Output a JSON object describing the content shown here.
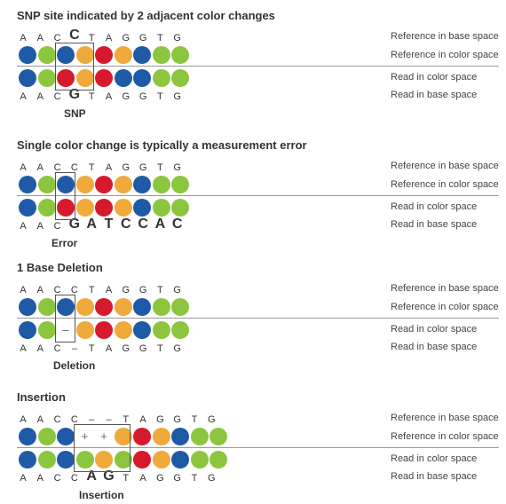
{
  "colors": {
    "blue": "#1f5aa6",
    "green": "#8cc63f",
    "orange": "#f0a93b",
    "red": "#d7192d",
    "line": "#999999"
  },
  "labels": {
    "ref_base": "Reference in base space",
    "ref_color": "Reference in color space",
    "read_color": "Read in color space",
    "read_base": "Read in base space"
  },
  "sections": [
    {
      "title": "SNP site indicated by 2 adjacent color changes",
      "ref_bases": [
        "A",
        "A",
        "C",
        "C",
        "T",
        "A",
        "G",
        "G",
        "T",
        "G"
      ],
      "ref_big": [
        3
      ],
      "ref_colors": [
        "blue",
        "green",
        "blue",
        "orange",
        "red",
        "orange",
        "blue",
        "green",
        "green"
      ],
      "read_colors": [
        "blue",
        "green",
        "red",
        "orange",
        "red",
        "blue",
        "blue",
        "green",
        "green"
      ],
      "read_bases": [
        "A",
        "A",
        "C",
        "G",
        "T",
        "A",
        "G",
        "G",
        "T",
        "G"
      ],
      "read_big": [
        3
      ],
      "annotation": "SNP"
    },
    {
      "title": "Single color change is typically a measurement error",
      "ref_bases": [
        "A",
        "A",
        "C",
        "C",
        "T",
        "A",
        "G",
        "G",
        "T",
        "G"
      ],
      "ref_big": [],
      "ref_colors": [
        "blue",
        "green",
        "blue",
        "orange",
        "red",
        "orange",
        "blue",
        "green",
        "green"
      ],
      "read_colors": [
        "blue",
        "green",
        "red",
        "orange",
        "red",
        "orange",
        "blue",
        "green",
        "green"
      ],
      "read_bases": [
        "A",
        "A",
        "C",
        "G",
        "A",
        "T",
        "C",
        "C",
        "A",
        "C"
      ],
      "read_big": [
        3,
        4,
        5,
        6,
        7,
        8,
        9
      ],
      "annotation": "Error"
    },
    {
      "title": "1 Base Deletion",
      "ref_bases": [
        "A",
        "A",
        "C",
        "C",
        "T",
        "A",
        "G",
        "G",
        "T",
        "G"
      ],
      "ref_big": [],
      "ref_colors": [
        "blue",
        "green",
        "blue",
        "orange",
        "red",
        "orange",
        "blue",
        "green",
        "green"
      ],
      "read_colors": [
        "blue",
        "green",
        "gap",
        "orange",
        "red",
        "orange",
        "blue",
        "green",
        "green"
      ],
      "read_symbol": "–",
      "read_bases": [
        "A",
        "A",
        "C",
        "–",
        "T",
        "A",
        "G",
        "G",
        "T",
        "G"
      ],
      "read_big": [],
      "annotation": "Deletion"
    },
    {
      "title": "Insertion",
      "ref_bases": [
        "A",
        "A",
        "C",
        "C",
        "–",
        "–",
        "T",
        "A",
        "G",
        "G",
        "T",
        "G"
      ],
      "ref_big": [],
      "ref_colors": [
        "blue",
        "green",
        "blue",
        "gap",
        "gap",
        "orange",
        "red",
        "orange",
        "blue",
        "green",
        "green"
      ],
      "ref_symbol": "+",
      "read_colors": [
        "blue",
        "green",
        "blue",
        "green",
        "orange",
        "green",
        "red",
        "orange",
        "blue",
        "green",
        "green"
      ],
      "read_bases": [
        "A",
        "A",
        "C",
        "C",
        "A",
        "G",
        "T",
        "A",
        "G",
        "G",
        "T",
        "G"
      ],
      "read_big": [
        4,
        5
      ],
      "annotation": "Insertion"
    }
  ]
}
